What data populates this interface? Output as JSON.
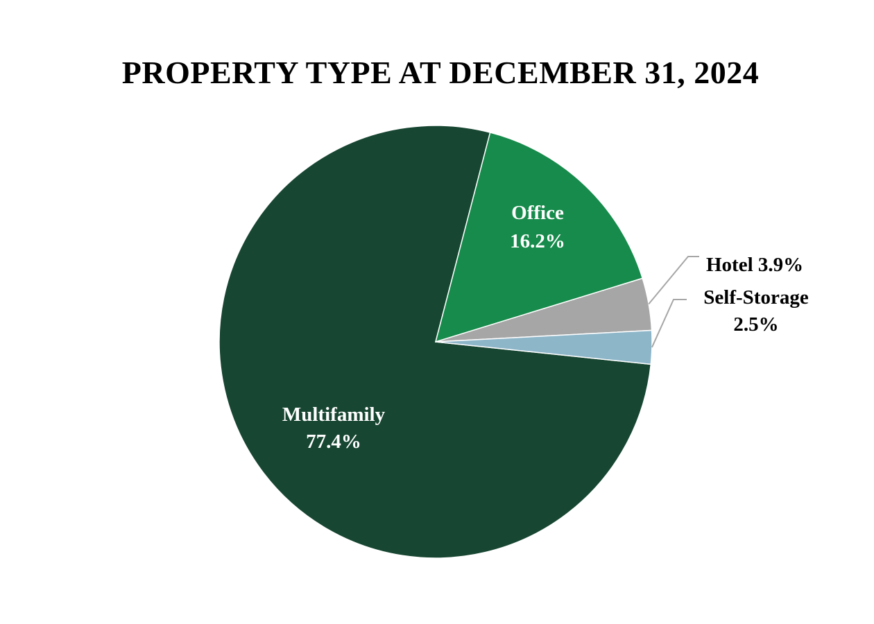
{
  "chart_data": {
    "type": "pie",
    "title": "PROPERTY TYPE AT DECEMBER 31, 2024",
    "slices": [
      {
        "label": "Multifamily",
        "value": 77.4,
        "value_label": "77.4%",
        "color": "#174632",
        "label_color": "#ffffff"
      },
      {
        "label": "Office",
        "value": 16.2,
        "value_label": "16.2%",
        "color": "#168b4b",
        "label_color": "#ffffff"
      },
      {
        "label": "Hotel",
        "value": 3.9,
        "value_label": "3.9%",
        "color": "#a6a6a6",
        "label_color": "#000000"
      },
      {
        "label": "Self-Storage",
        "value": 2.5,
        "value_label": "2.5%",
        "color": "#8db6c9",
        "label_color": "#000000"
      }
    ],
    "legend": "none",
    "label_style": "data labels with leader lines for small slices"
  }
}
